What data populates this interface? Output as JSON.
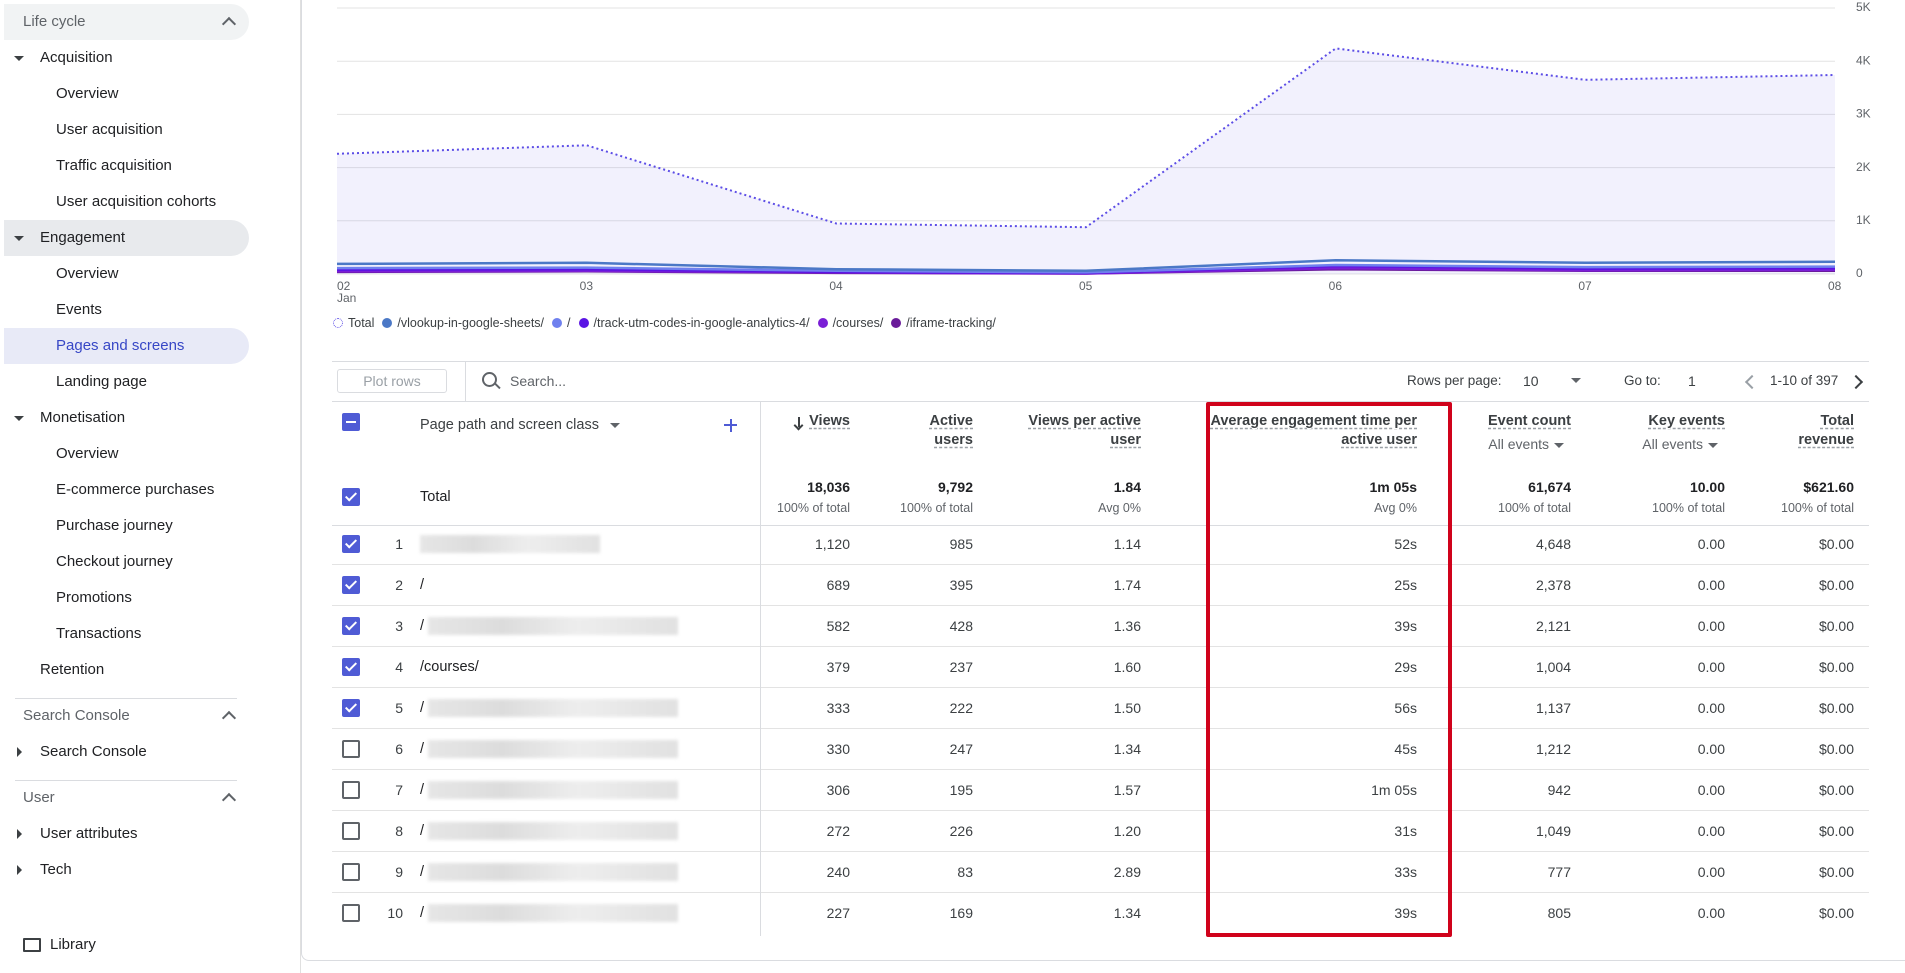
{
  "sidebar": {
    "sections": [
      {
        "title": "Life cycle",
        "expanded": true,
        "groups": [
          {
            "label": "Acquisition",
            "expanded": true,
            "items": [
              "Overview",
              "User acquisition",
              "Traffic acquisition",
              "User acquisition cohorts"
            ]
          },
          {
            "label": "Engagement",
            "expanded": true,
            "active": true,
            "selected_item": 2,
            "items": [
              "Overview",
              "Events",
              "Pages and screens",
              "Landing page"
            ]
          },
          {
            "label": "Monetisation",
            "expanded": true,
            "items": [
              "Overview",
              "E-commerce purchases",
              "Purchase journey",
              "Checkout journey",
              "Promotions",
              "Transactions"
            ]
          },
          {
            "label": "Retention"
          }
        ]
      },
      {
        "title": "Search Console",
        "expanded": true,
        "groups": [
          {
            "label": "Search Console",
            "expanded": false
          }
        ]
      },
      {
        "title": "User",
        "expanded": true,
        "groups": [
          {
            "label": "User attributes",
            "expanded": false
          },
          {
            "label": "Tech",
            "expanded": false
          }
        ]
      }
    ],
    "footer": "Library"
  },
  "chart_data": {
    "type": "line",
    "x": [
      "02",
      "03",
      "04",
      "05",
      "06",
      "07",
      "08"
    ],
    "x_sublabel": "Jan",
    "series": [
      {
        "name": "Total",
        "color": "#5c4de6",
        "style": "dotted",
        "area": true,
        "values": [
          2260,
          2420,
          950,
          880,
          4240,
          3650,
          3740
        ]
      },
      {
        "name": "/vlookup-in-google-sheets/",
        "color": "#4b78c6",
        "values": [
          190,
          210,
          90,
          60,
          260,
          210,
          230
        ]
      },
      {
        "name": "/",
        "color": "#6f80ee",
        "values": [
          110,
          120,
          60,
          30,
          170,
          130,
          140
        ]
      },
      {
        "name": "/track-utm-codes-in-google-analytics-4/",
        "color": "#5a14e4",
        "values": [
          80,
          90,
          40,
          20,
          150,
          100,
          110
        ]
      },
      {
        "name": "/courses/",
        "color": "#7a1ed6",
        "values": [
          50,
          60,
          30,
          10,
          110,
          70,
          80
        ]
      },
      {
        "name": "/iframe-tracking/",
        "color": "#6a1b9a",
        "values": [
          40,
          50,
          20,
          10,
          90,
          60,
          60
        ]
      }
    ],
    "ylim": [
      0,
      5000
    ],
    "yticks": [
      0,
      {
        "value": 1000,
        "label": "1K"
      },
      {
        "value": 2000,
        "label": "2K"
      },
      {
        "value": 3000,
        "label": "3K"
      },
      {
        "value": 4000,
        "label": "4K"
      },
      {
        "value": 5000,
        "label": "5K"
      }
    ],
    "grid": true
  },
  "toolbar": {
    "plot_rows": "Plot rows",
    "search_placeholder": "Search...",
    "rows_per_page_label": "Rows per page:",
    "rows_per_page": "10",
    "goto_label": "Go to:",
    "goto_value": "1",
    "range": "1-10 of 397"
  },
  "table": {
    "dimension": "Page path and screen class",
    "columns": [
      {
        "label": "Views",
        "sort": "desc"
      },
      {
        "label": "Active users"
      },
      {
        "label": "Views per active user"
      },
      {
        "label": "Average engagement time per active user"
      },
      {
        "label": "Event count",
        "sub": "All events"
      },
      {
        "label": "Key events",
        "sub": "All events"
      },
      {
        "label": "Total revenue"
      }
    ],
    "totals": {
      "label": "Total",
      "checked": true,
      "values": [
        "18,036",
        "9,792",
        "1.84",
        "1m 05s",
        "61,674",
        "10.00",
        "$621.60"
      ],
      "notes": [
        "100% of total",
        "100% of total",
        "Avg 0%",
        "Avg 0%",
        "100% of total",
        "100% of total",
        "100% of total"
      ]
    },
    "rows": [
      {
        "index": 1,
        "path": null,
        "redacted": true,
        "checked": true,
        "values": [
          "1,120",
          "985",
          "1.14",
          "52s",
          "4,648",
          "0.00",
          "$0.00"
        ]
      },
      {
        "index": 2,
        "path": "/",
        "redacted": false,
        "checked": true,
        "values": [
          "689",
          "395",
          "1.74",
          "25s",
          "2,378",
          "0.00",
          "$0.00"
        ]
      },
      {
        "index": 3,
        "path": "/",
        "redacted": true,
        "checked": true,
        "values": [
          "582",
          "428",
          "1.36",
          "39s",
          "2,121",
          "0.00",
          "$0.00"
        ]
      },
      {
        "index": 4,
        "path": "/courses/",
        "redacted": false,
        "checked": true,
        "values": [
          "379",
          "237",
          "1.60",
          "29s",
          "1,004",
          "0.00",
          "$0.00"
        ]
      },
      {
        "index": 5,
        "path": "/",
        "redacted": true,
        "checked": true,
        "values": [
          "333",
          "222",
          "1.50",
          "56s",
          "1,137",
          "0.00",
          "$0.00"
        ]
      },
      {
        "index": 6,
        "path": "/",
        "redacted": true,
        "checked": false,
        "values": [
          "330",
          "247",
          "1.34",
          "45s",
          "1,212",
          "0.00",
          "$0.00"
        ]
      },
      {
        "index": 7,
        "path": "/",
        "redacted": true,
        "checked": false,
        "values": [
          "306",
          "195",
          "1.57",
          "1m 05s",
          "942",
          "0.00",
          "$0.00"
        ]
      },
      {
        "index": 8,
        "path": "/",
        "redacted": true,
        "checked": false,
        "values": [
          "272",
          "226",
          "1.20",
          "31s",
          "1,049",
          "0.00",
          "$0.00"
        ]
      },
      {
        "index": 9,
        "path": "/",
        "redacted": true,
        "checked": false,
        "values": [
          "240",
          "83",
          "2.89",
          "33s",
          "777",
          "0.00",
          "$0.00"
        ]
      },
      {
        "index": 10,
        "path": "/",
        "redacted": true,
        "checked": false,
        "values": [
          "227",
          "169",
          "1.34",
          "39s",
          "805",
          "0.00",
          "$0.00"
        ]
      }
    ]
  }
}
